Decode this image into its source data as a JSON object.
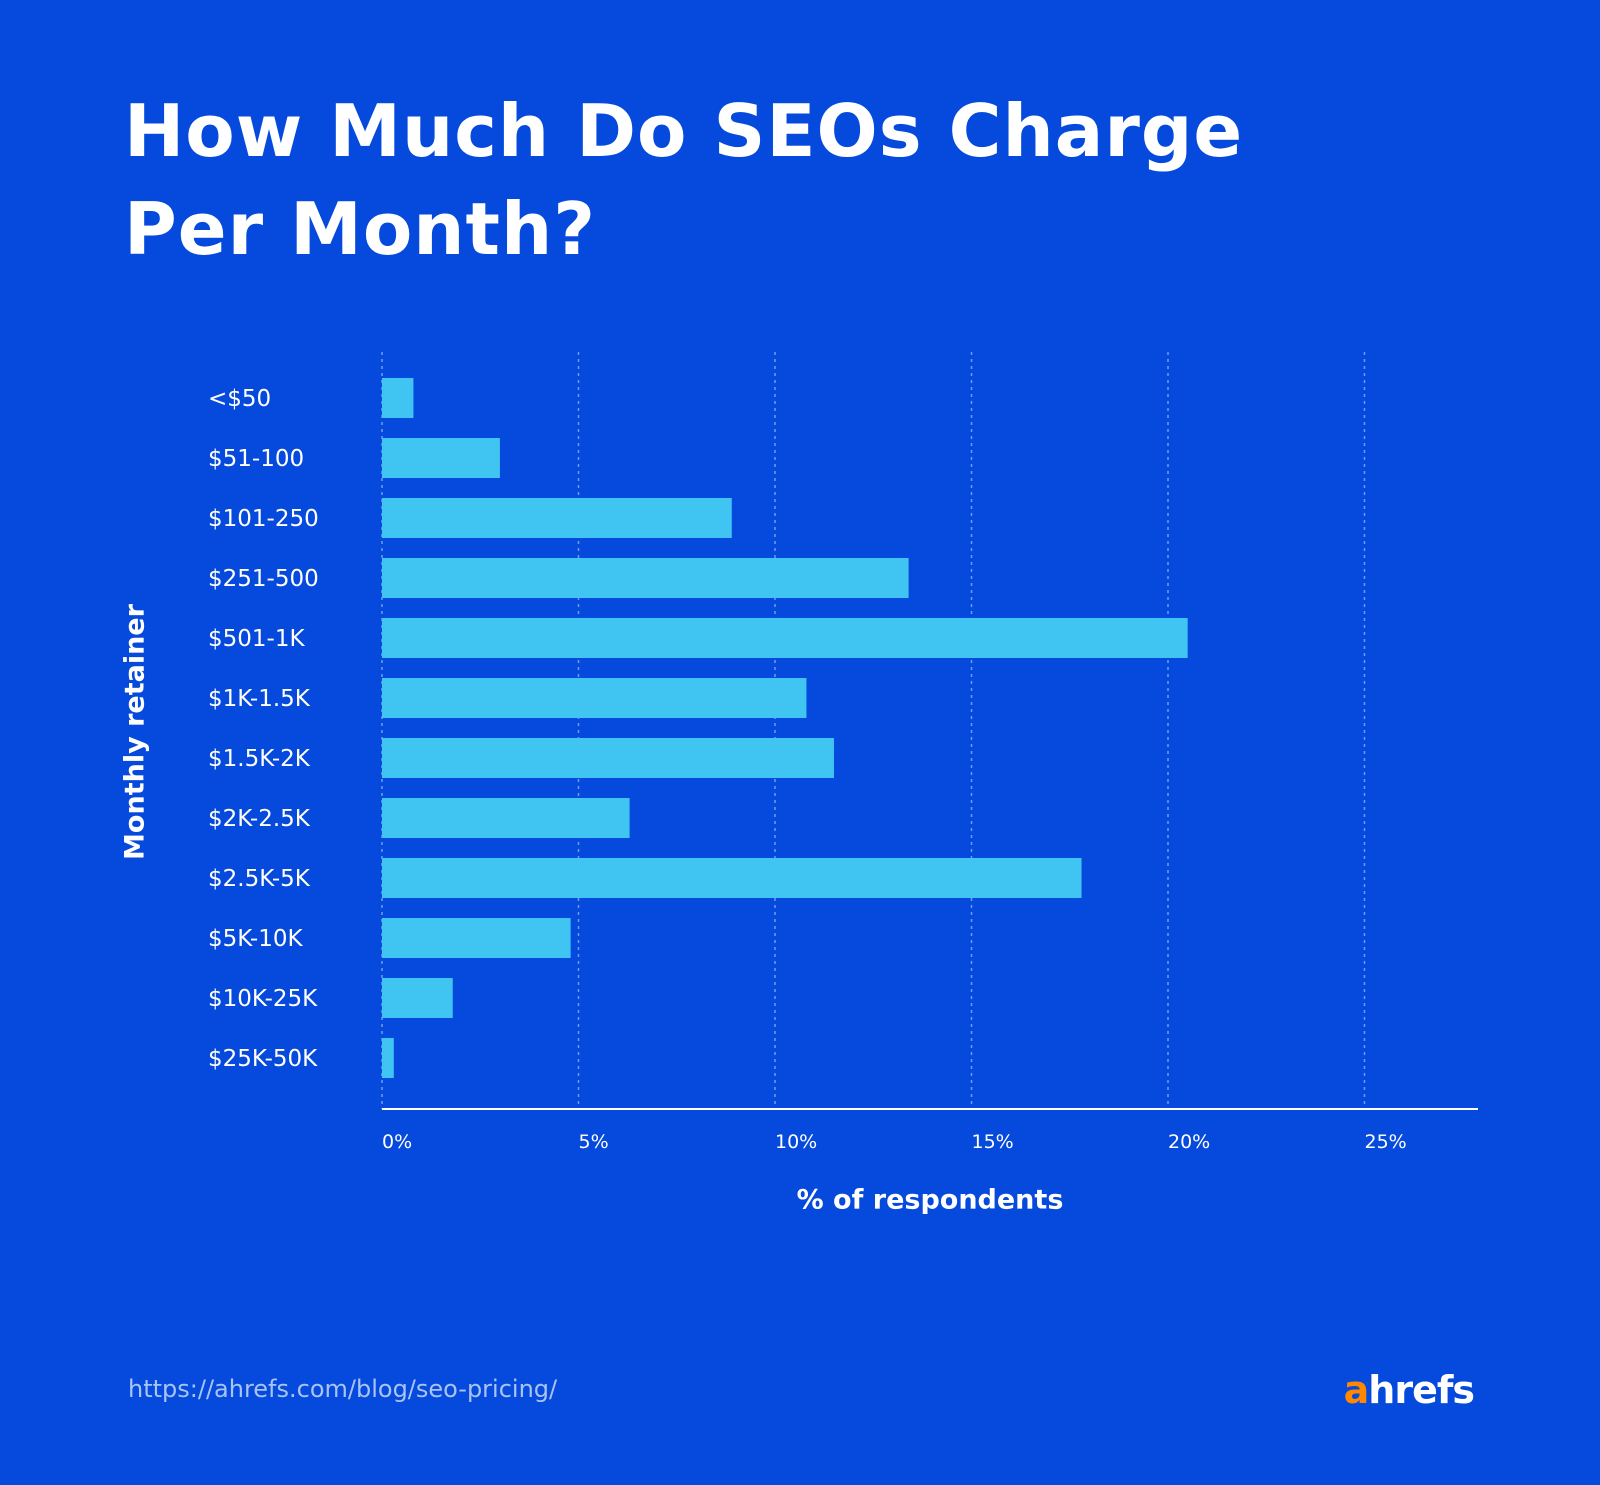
{
  "chart_data": {
    "type": "bar",
    "orientation": "horizontal",
    "title": "How Much Do SEOs Charge Per Month?",
    "title_lines": [
      "How Much Do SEOs Charge",
      "Per Month?"
    ],
    "xlabel": "% of respondents",
    "ylabel": "Monthly retainer",
    "categories": [
      "<$50",
      "$51-100",
      "$101-250",
      "$251-500",
      "$501-1K",
      "$1K-1.5K",
      "$1.5K-2K",
      "$2K-2.5K",
      "$2.5K-5K",
      "$5K-10K",
      "$10K-25K",
      "$25K-50K"
    ],
    "values": [
      0.8,
      3.0,
      8.9,
      13.4,
      20.5,
      10.8,
      11.5,
      6.3,
      17.8,
      4.8,
      1.8,
      0.3
    ],
    "xticks": [
      "0%",
      "5%",
      "10%",
      "15%",
      "20%",
      "25%"
    ],
    "xtick_values": [
      0,
      5,
      10,
      15,
      20,
      25
    ],
    "xlim": [
      0,
      28
    ],
    "grid": "vertical dotted",
    "colors": {
      "background": "#054ADC",
      "bar": "#40C5F2",
      "grid": "#6E9CF0",
      "axis": "#FFFFFF"
    }
  },
  "footer": {
    "url": "https://ahrefs.com/blog/seo-pricing/",
    "logo": "ahrefs"
  }
}
